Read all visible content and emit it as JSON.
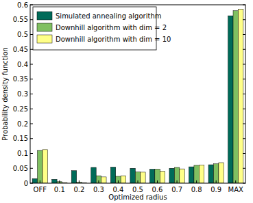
{
  "chart_data": {
    "type": "bar",
    "x_label": "Optimized radius",
    "y_label": "Probability density function",
    "categories": [
      "OFF",
      "0.1",
      "0.2",
      "0.3",
      "0.4",
      "0.5",
      "0.6",
      "0.7",
      "0.8",
      "0.9",
      "MAX"
    ],
    "series": [
      {
        "name": "Simulated annealing algorithm",
        "color": "#006b59",
        "values": [
          0.015,
          0.013,
          0.042,
          0.053,
          0.054,
          0.05,
          0.047,
          0.05,
          0.055,
          0.062,
          0.563
        ]
      },
      {
        "name": "Downhill algorithm with dim = 2",
        "color": "#80c061",
        "values": [
          0.11,
          0.005,
          0.003,
          0.025,
          0.023,
          0.038,
          0.047,
          0.053,
          0.06,
          0.065,
          0.58
        ]
      },
      {
        "name": "Downhill algorithm with dim = 10",
        "color": "#ffff88",
        "values": [
          0.113,
          0.002,
          0.001,
          0.021,
          0.025,
          0.037,
          0.04,
          0.048,
          0.061,
          0.069,
          0.585
        ]
      }
    ],
    "ylim": [
      0,
      0.6
    ],
    "yticks": [
      0,
      0.05,
      0.1,
      0.15,
      0.2,
      0.25,
      0.3,
      0.35,
      0.4,
      0.45,
      0.5,
      0.55,
      0.6
    ],
    "grid": false,
    "legend": "upper-left"
  }
}
